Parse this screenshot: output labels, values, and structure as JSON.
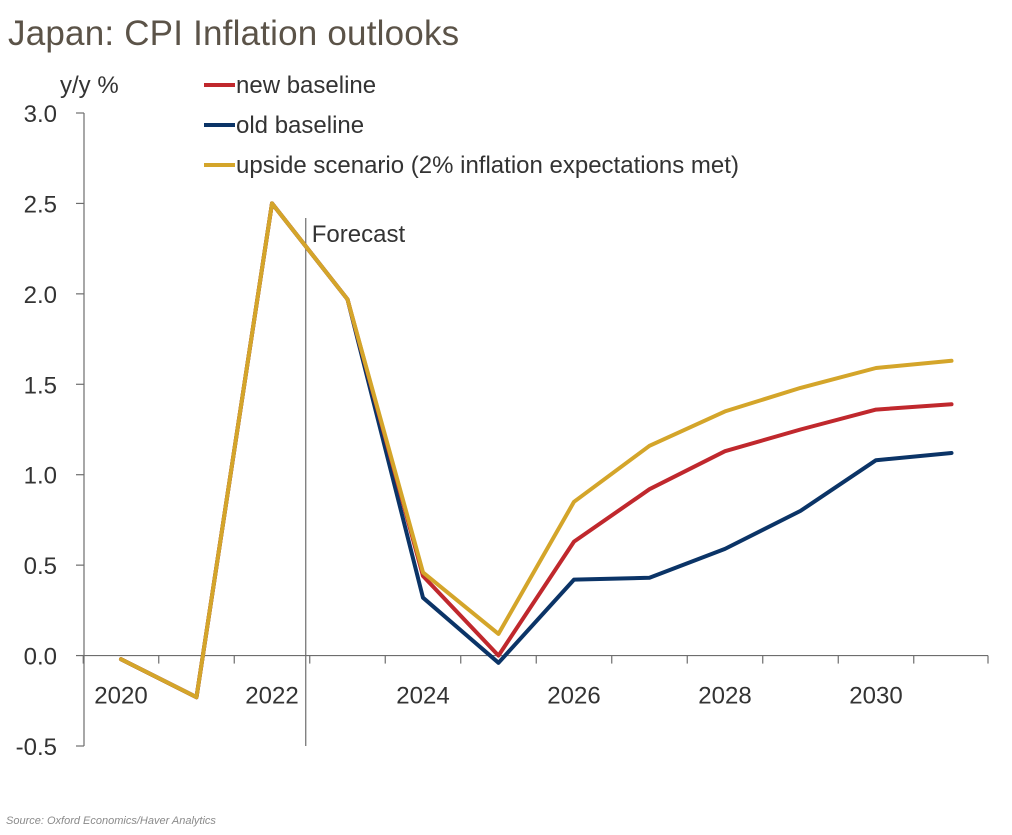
{
  "title": "Japan: CPI Inflation outlooks",
  "source": "Source: Oxford Economics/Haver Analytics",
  "colors": {
    "text": "#333333",
    "axis": "#6d6d6d",
    "title": "#5b5348"
  },
  "chart_data": {
    "type": "line",
    "title": "Japan: CPI Inflation outlooks",
    "ylabel": "y/y %",
    "xlabel": "",
    "ylim": [
      -0.5,
      3.0
    ],
    "yticks": [
      -0.5,
      0.0,
      0.5,
      1.0,
      1.5,
      2.0,
      2.5,
      3.0
    ],
    "ytick_labels": [
      "-0.5",
      "0.0",
      "0.5",
      "1.0",
      "1.5",
      "2.0",
      "2.5",
      "3.0"
    ],
    "x": [
      2020,
      2021,
      2022,
      2023,
      2024,
      2025,
      2026,
      2027,
      2028,
      2029,
      2030,
      2031
    ],
    "xtick_labels": [
      "2020",
      "2022",
      "2024",
      "2026",
      "2028",
      "2030"
    ],
    "xtick_values": [
      2020,
      2022,
      2024,
      2026,
      2028,
      2030
    ],
    "forecast_marker": {
      "x": 2022.5,
      "label": "Forecast"
    },
    "legend_position": "top",
    "grid": false,
    "series": [
      {
        "name": "new baseline",
        "color": "#c0282d",
        "values": [
          -0.02,
          -0.23,
          2.5,
          1.97,
          0.44,
          0.0,
          0.63,
          0.92,
          1.13,
          1.25,
          1.36,
          1.39
        ]
      },
      {
        "name": "old baseline",
        "color": "#0b3467",
        "values": [
          -0.02,
          -0.23,
          2.5,
          1.97,
          0.32,
          -0.04,
          0.42,
          0.43,
          0.59,
          0.8,
          1.08,
          1.12
        ]
      },
      {
        "name": "upside scenario (2% inflation expectations met)",
        "color": "#d4a52a",
        "values": [
          -0.02,
          -0.23,
          2.5,
          1.97,
          0.46,
          0.12,
          0.85,
          1.16,
          1.35,
          1.48,
          1.59,
          1.63
        ]
      }
    ]
  }
}
